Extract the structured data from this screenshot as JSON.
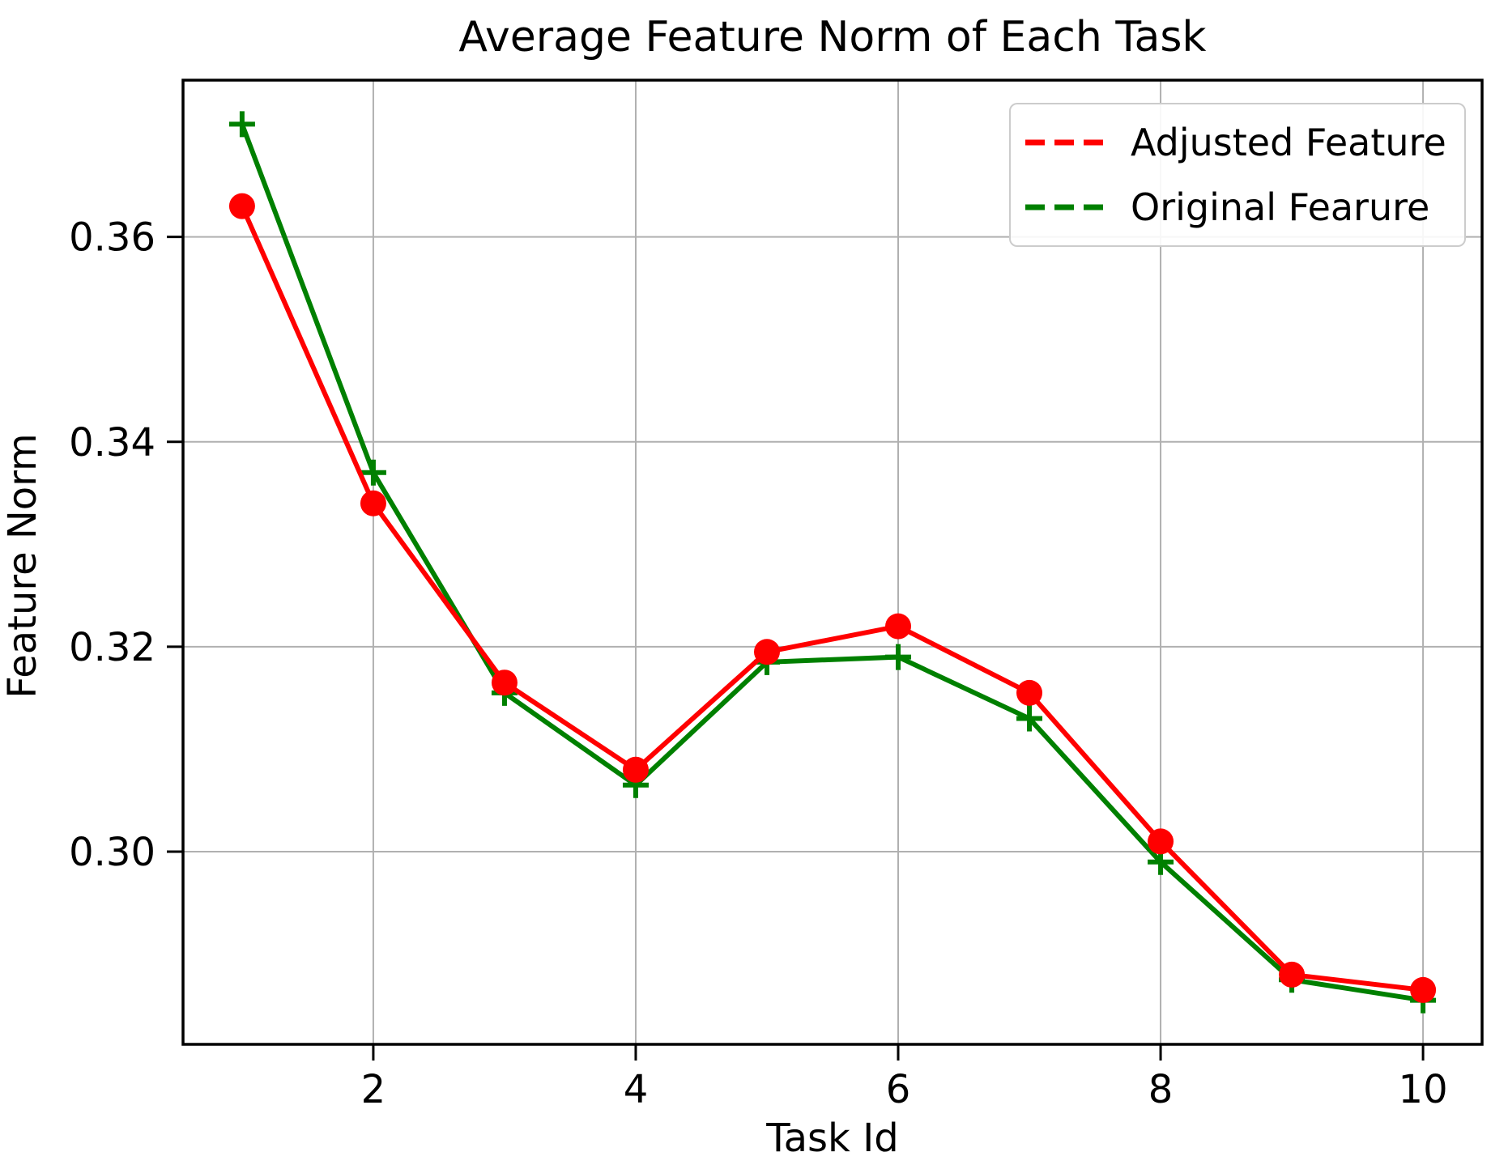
{
  "figure": {
    "background": "#ffffff",
    "text_color": "#000000",
    "spine_color": "#000000"
  },
  "chart_data": {
    "type": "line",
    "title": "Average Feature Norm of Each Task",
    "xlabel": "Task Id",
    "ylabel": "Feature Norm",
    "x": [
      1,
      2,
      3,
      4,
      5,
      6,
      7,
      8,
      9,
      10
    ],
    "series": [
      {
        "name": "Adjusted Feature",
        "color": "#ff0000",
        "marker": "circle",
        "line_style_in_plot": "solid",
        "line_style_in_legend": "dashed",
        "values": [
          0.363,
          0.334,
          0.3165,
          0.308,
          0.3195,
          0.322,
          0.3155,
          0.301,
          0.288,
          0.2865
        ]
      },
      {
        "name": "Original Fearure",
        "color": "#008000",
        "marker": "plus",
        "line_style_in_plot": "solid",
        "line_style_in_legend": "dashed",
        "values": [
          0.371,
          0.337,
          0.3155,
          0.3065,
          0.3185,
          0.319,
          0.313,
          0.299,
          0.2875,
          0.2855
        ]
      }
    ],
    "xticks": [
      2,
      4,
      6,
      8,
      10
    ],
    "yticks": [
      {
        "label": "0.30",
        "value": 0.3
      },
      {
        "label": "0.32",
        "value": 0.32
      },
      {
        "label": "0.34",
        "value": 0.34
      },
      {
        "label": "0.36",
        "value": 0.36
      }
    ],
    "xlim": [
      0.55,
      10.45
    ],
    "ylim": [
      0.2812,
      0.3753
    ],
    "grid": true,
    "grid_color": "#b0b0b0",
    "legend_position": "upper right"
  }
}
